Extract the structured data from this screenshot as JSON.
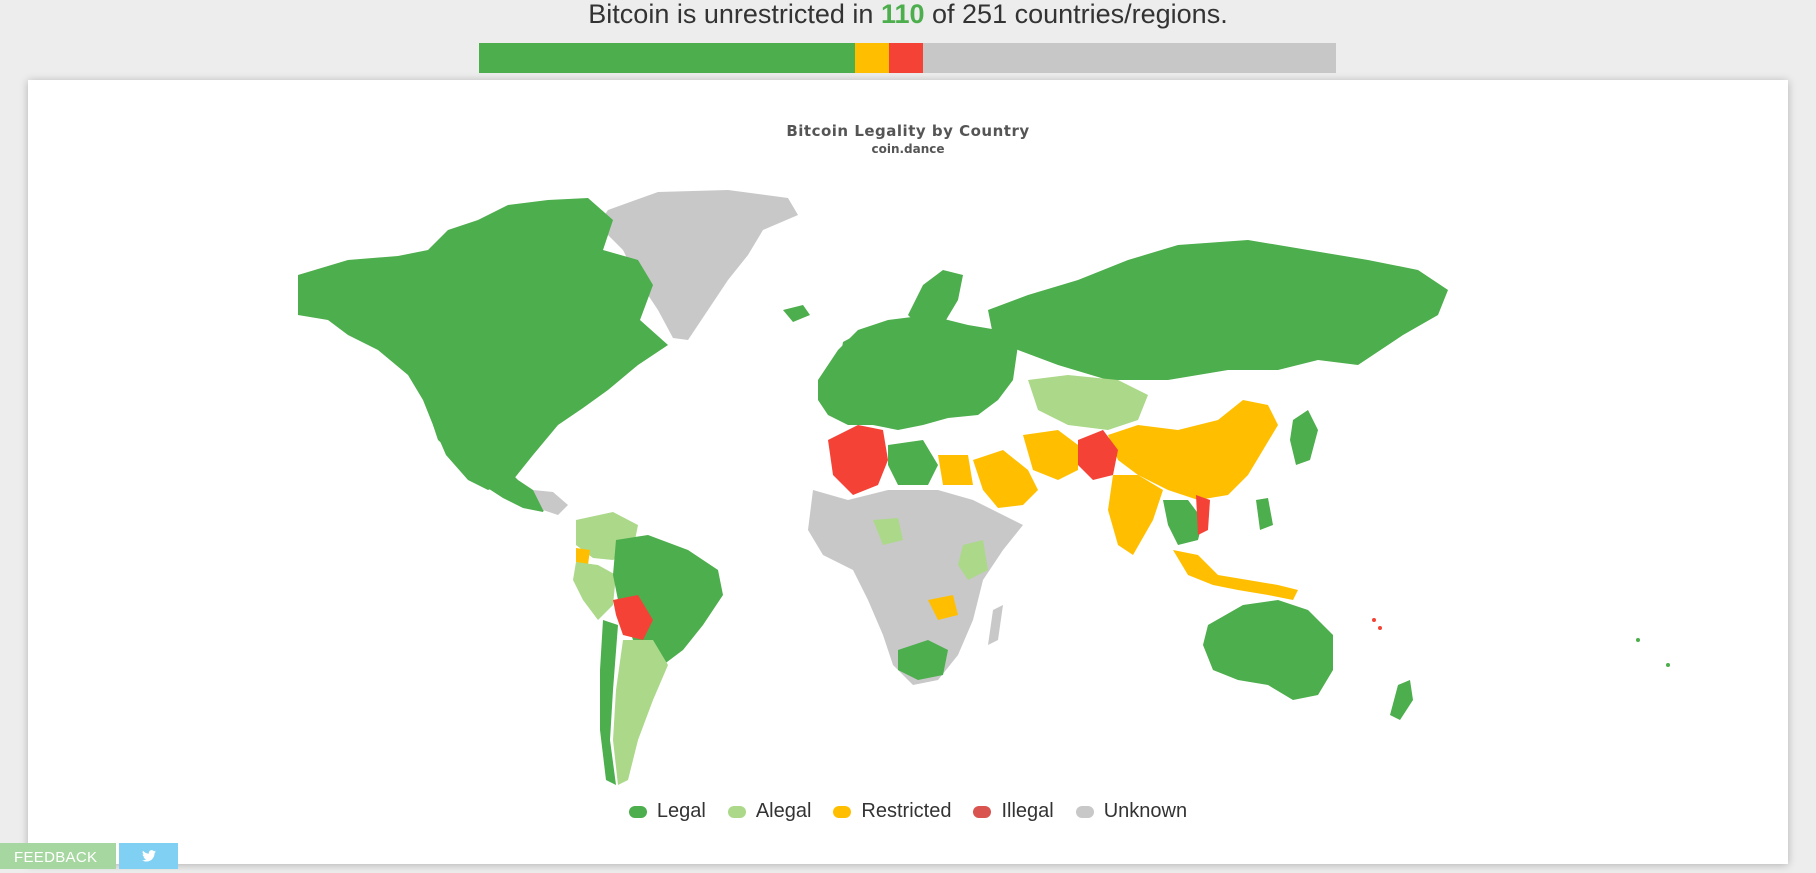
{
  "headline": {
    "prefix": "Bitcoin is unrestricted in",
    "count": "110",
    "suffix": "of 251 countries/regions."
  },
  "status_bar": {
    "total": 251,
    "segments": [
      {
        "key": "legal",
        "count": 110,
        "color": "#4cae4c"
      },
      {
        "key": "restricted",
        "count": 10,
        "color": "#ffbf00"
      },
      {
        "key": "illegal",
        "count": 10,
        "color": "#f44336"
      },
      {
        "key": "unknown",
        "count": 121,
        "color": "#c7c7c7"
      }
    ]
  },
  "map": {
    "title": "Bitcoin Legality by Country",
    "subtitle": "coin.dance",
    "colors": {
      "legal": "#4cae4c",
      "alegal": "#acd88a",
      "restricted": "#ffbf00",
      "illegal": "#f44336",
      "unknown": "#c8c8c8"
    }
  },
  "legend": [
    {
      "label": "Legal",
      "color": "#4cae4c"
    },
    {
      "label": "Alegal",
      "color": "#acd88a"
    },
    {
      "label": "Restricted",
      "color": "#ffbf00"
    },
    {
      "label": "Illegal",
      "color": "#d9534f"
    },
    {
      "label": "Unknown",
      "color": "#c8c8c8"
    }
  ],
  "footer": {
    "feedback_label": "FEEDBACK",
    "twitter_icon": "twitter-icon"
  }
}
